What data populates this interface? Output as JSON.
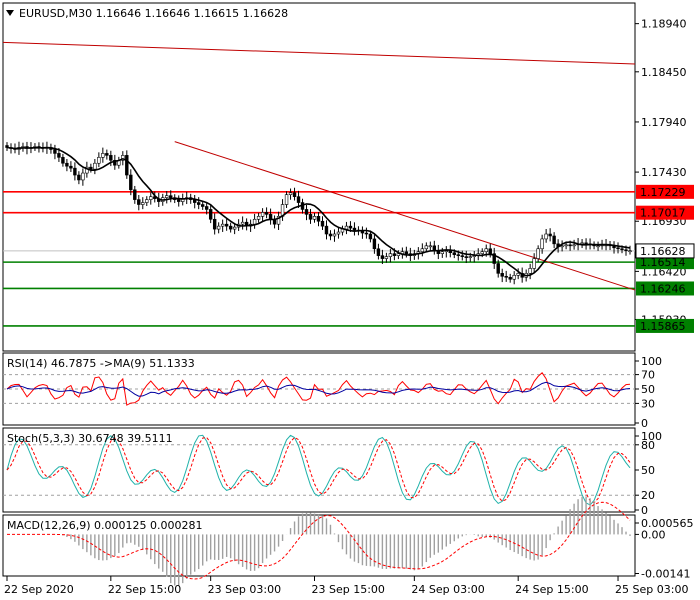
{
  "chart_data": [
    {
      "type": "candlestick",
      "title": "EURUSD,M30",
      "ohlc_label": "1.16646 1.16646 1.16615 1.16628",
      "price_range": [
        1.1561,
        1.1915
      ],
      "price_ticks": [
        "1.18940",
        "1.18450",
        "1.17940",
        "1.17430",
        "1.16930",
        "1.16420",
        "1.15930"
      ],
      "current_price": "1.16628",
      "current_price_value": 1.16628,
      "levels": [
        {
          "label": "1.17229",
          "value": 1.17229,
          "color": "#ff0000"
        },
        {
          "label": "1.17017",
          "value": 1.17017,
          "color": "#ff0000"
        },
        {
          "label": "1.16514",
          "value": 1.16514,
          "color": "#008000"
        },
        {
          "label": "1.16246",
          "value": 1.16246,
          "color": "#008000"
        },
        {
          "label": "1.15865",
          "value": 1.15865,
          "color": "#008000"
        }
      ],
      "trendlines": [
        {
          "x1": 0,
          "y1": 1.1875,
          "x2": 310,
          "y2": 1.1853,
          "color": "#c00000"
        },
        {
          "x1": 42,
          "y1": 1.1774,
          "x2": 310,
          "y2": 1.1623,
          "color": "#c00000"
        }
      ],
      "close": [
        1.1768,
        1.1767,
        1.1766,
        1.1768,
        1.1769,
        1.1767,
        1.1768,
        1.1769,
        1.1768,
        1.1767,
        1.1768,
        1.1766,
        1.1762,
        1.1758,
        1.1752,
        1.1749,
        1.1747,
        1.174,
        1.1735,
        1.1742,
        1.1748,
        1.1746,
        1.1752,
        1.1758,
        1.1762,
        1.176,
        1.1755,
        1.175,
        1.1755,
        1.176,
        1.174,
        1.1725,
        1.1715,
        1.171,
        1.1712,
        1.1715,
        1.1718,
        1.1716,
        1.1713,
        1.1717,
        1.1719,
        1.1717,
        1.1715,
        1.1713,
        1.1716,
        1.1717,
        1.1715,
        1.1712,
        1.171,
        1.1708,
        1.1705,
        1.1695,
        1.1685,
        1.1688,
        1.169,
        1.1688,
        1.1685,
        1.1687,
        1.169,
        1.1692,
        1.1688,
        1.169,
        1.1695,
        1.1698,
        1.1702,
        1.17,
        1.1695,
        1.169,
        1.1698,
        1.171,
        1.172,
        1.1722,
        1.1718,
        1.1712,
        1.1705,
        1.17,
        1.1695,
        1.1698,
        1.1693,
        1.1688,
        1.168,
        1.1678,
        1.168,
        1.1682,
        1.1685,
        1.1688,
        1.1686,
        1.1684,
        1.1683,
        1.1681,
        1.168,
        1.1675,
        1.1665,
        1.1658,
        1.1655,
        1.1657,
        1.166,
        1.1658,
        1.166,
        1.1662,
        1.166,
        1.1658,
        1.166,
        1.1662,
        1.1665,
        1.1668,
        1.1668,
        1.1663,
        1.166,
        1.1662,
        1.1663,
        1.1661,
        1.1659,
        1.1658,
        1.1657,
        1.1656,
        1.1657,
        1.1658,
        1.166,
        1.1662,
        1.1665,
        1.166,
        1.165,
        1.164,
        1.1637,
        1.1636,
        1.1634,
        1.1638,
        1.164,
        1.1636,
        1.164,
        1.1645,
        1.1655,
        1.1665,
        1.1675,
        1.168,
        1.1678,
        1.167,
        1.1667,
        1.1668,
        1.1669,
        1.1668,
        1.1669,
        1.167,
        1.1671,
        1.167,
        1.1669,
        1.1668,
        1.1668,
        1.1669,
        1.1669,
        1.1668,
        1.1666,
        1.1665,
        1.1664,
        1.1663,
        1.1663
      ],
      "ma_label": "MA"
    },
    {
      "type": "line",
      "title": "RSI(14) 46.7875 ->MA(9) 51.1333",
      "ylim": [
        0,
        100
      ],
      "ticks": [
        "100",
        "70",
        "50",
        "30",
        "0"
      ],
      "levels": [
        70,
        50,
        30
      ]
    },
    {
      "type": "line",
      "title": "Stoch(5,3,3) 30.6748 39.5111",
      "ylim": [
        0,
        100
      ],
      "ticks": [
        "100",
        "80",
        "50",
        "20",
        "0"
      ],
      "levels": [
        80,
        20
      ]
    },
    {
      "type": "bar",
      "title": "MACD(12,26,9) 0.000125 0.000281",
      "ylim": [
        -0.0015,
        0.0007
      ],
      "ticks": [
        "0.000565",
        "0.00",
        "-0.00141"
      ]
    }
  ],
  "x_axis": {
    "labels": [
      "22 Sep 2020",
      "22 Sep 15:00",
      "23 Sep 03:00",
      "23 Sep 15:00",
      "24 Sep 03:00",
      "24 Sep 15:00",
      "25 Sep 03:00"
    ],
    "label_positions": [
      0,
      26,
      51,
      77,
      102,
      128,
      153
    ]
  },
  "colors": {
    "bull": "#ffffff",
    "bear": "#000000",
    "candle_outline": "#000000",
    "ma": "#000000",
    "rsi": "#ff0000",
    "rsi_ma": "#0000a0",
    "stoch_main": "#20b2aa",
    "stoch_signal": "#ff0000",
    "macd_hist": "#a0a0a0",
    "macd_signal": "#ff0000",
    "grid_level": "#a0a0a0"
  }
}
